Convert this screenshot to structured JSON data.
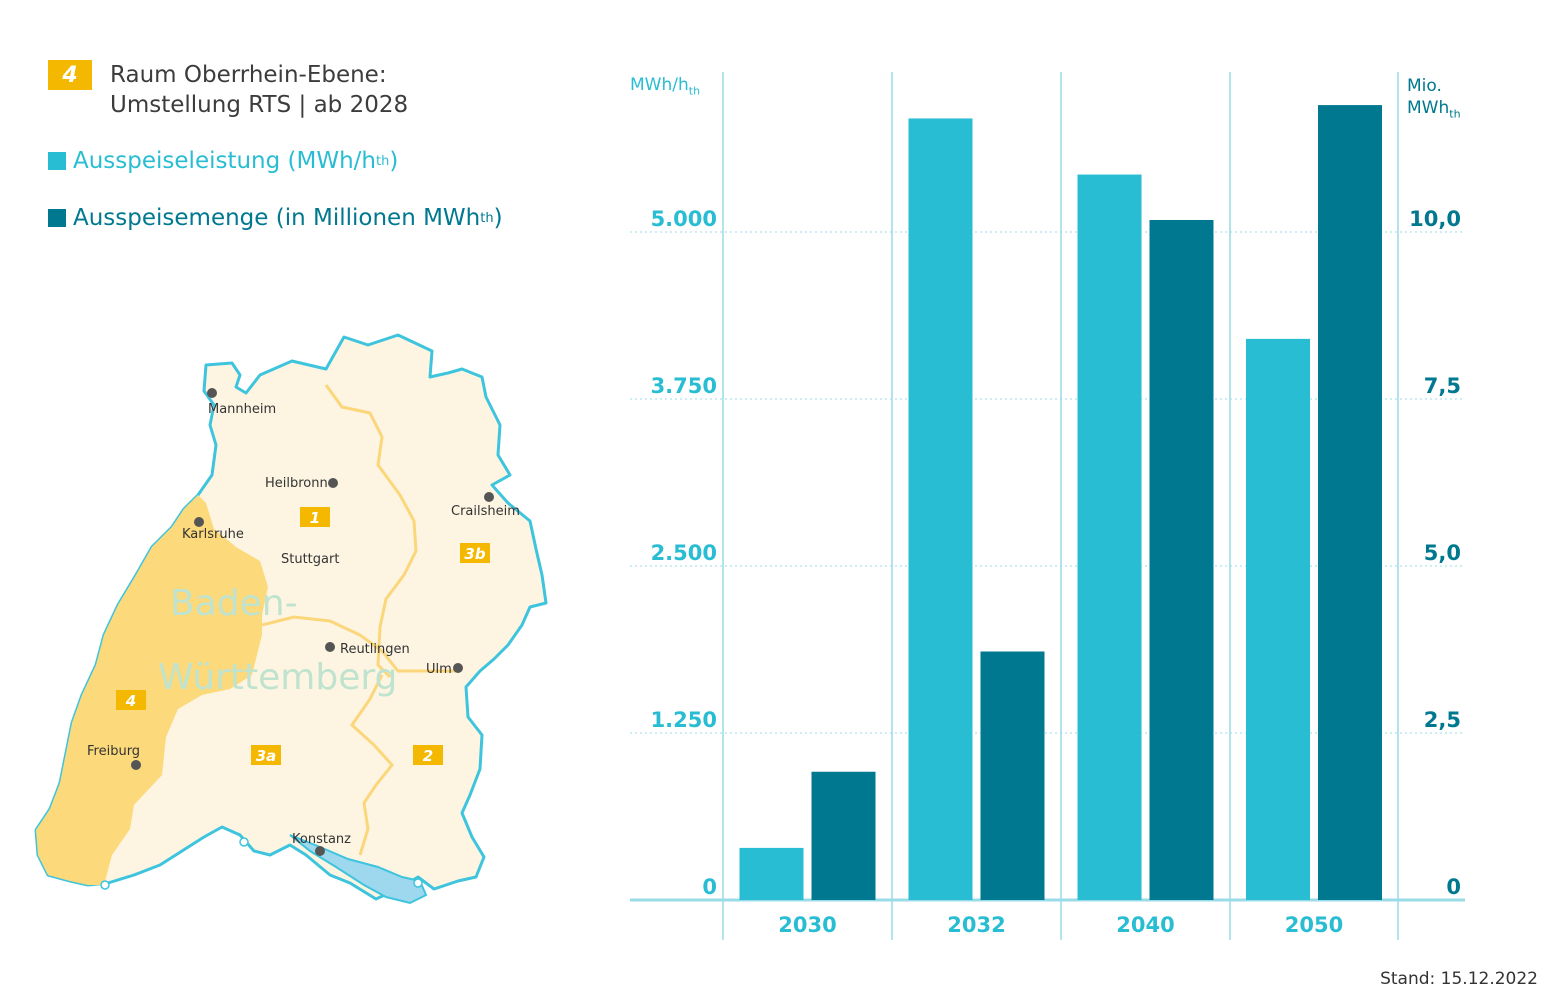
{
  "legend": {
    "zone_badge": "4",
    "zone_title_line1": "Raum Oberrhein-Ebene:",
    "zone_title_line2": "Umstellung RTS | ab 2028",
    "series1_label": "Ausspeiseleistung (MWh/h",
    "series1_sub": "th",
    "series1_close": ")",
    "series2_label": "Ausspeisemenge (in Millionen MWh",
    "series2_sub": "th",
    "series2_close": ")"
  },
  "colors": {
    "series1": "#29bdd3",
    "series2": "#00788f",
    "zone4": "#fcd97a",
    "land": "#fdf5e2",
    "border": "#3ec4dd",
    "badge": "#f5b800"
  },
  "map": {
    "state_name_line1": "Baden-",
    "state_name_line2": "Württemberg",
    "cities": [
      "Mannheim",
      "Heilbronn",
      "Karlsruhe",
      "Crailsheim",
      "Stuttgart",
      "Reutlingen",
      "Ulm",
      "Freiburg",
      "Konstanz"
    ],
    "zones": [
      "1",
      "3b",
      "4",
      "3a",
      "2"
    ]
  },
  "chart_data": {
    "type": "bar",
    "categories": [
      "2030",
      "2032",
      "2040",
      "2050"
    ],
    "series": [
      {
        "name": "Ausspeiseleistung (MWh/hth)",
        "axis": "left",
        "values": [
          390,
          5850,
          5430,
          4200
        ]
      },
      {
        "name": "Ausspeisemenge (in Millionen MWhth)",
        "axis": "right",
        "values": [
          1.92,
          3.72,
          10.18,
          11.9
        ]
      }
    ],
    "y_left": {
      "unit": "MWh/h",
      "unit_sub": "th",
      "ticks": [
        "0",
        "1.250",
        "2.500",
        "3.750",
        "5.000"
      ],
      "tick_values": [
        0,
        1250,
        2500,
        3750,
        5000
      ],
      "range": [
        0,
        6250
      ]
    },
    "y_right": {
      "unit_line1": "Mio.",
      "unit_line2": "MWh",
      "unit_sub": "th",
      "ticks": [
        "0",
        "2,5",
        "5,0",
        "7,5",
        "10,0"
      ],
      "tick_values": [
        0,
        2.5,
        5,
        7.5,
        10
      ],
      "range": [
        0,
        12.5
      ]
    },
    "grid": true
  },
  "footer": "Stand: 15.12.2022"
}
